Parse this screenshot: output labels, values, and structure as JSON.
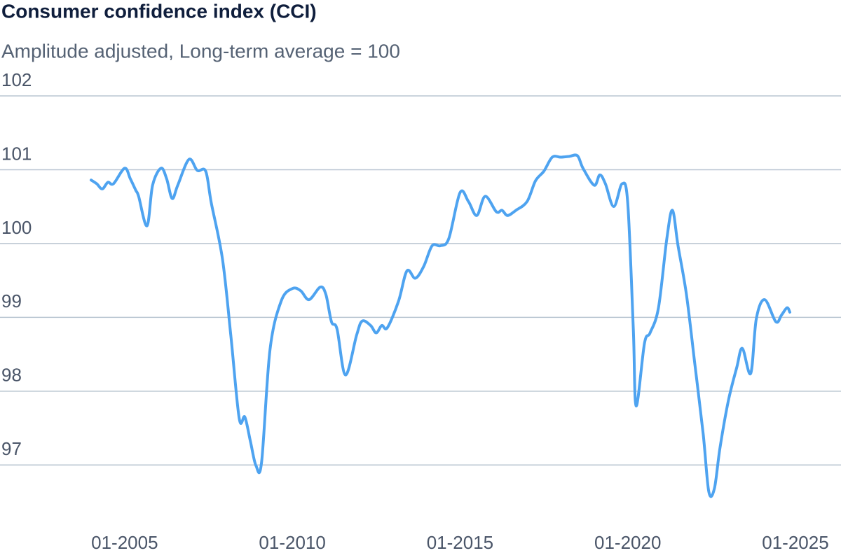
{
  "chart_data": {
    "type": "line",
    "title": "Consumer confidence index (CCI)",
    "subtitle": "Amplitude adjusted, Long-term average = 100",
    "x": [
      "01-2004",
      "03-2004",
      "05-2004",
      "07-2004",
      "09-2004",
      "01-2005",
      "03-2005",
      "05-2005",
      "06-2005",
      "09-2005",
      "11-2005",
      "02-2006",
      "04-2006",
      "06-2006",
      "08-2006",
      "12-2006",
      "03-2007",
      "06-2007",
      "08-2007",
      "12-2007",
      "03-2008",
      "06-2008",
      "08-2008",
      "10-2008",
      "12-2008",
      "02-2009",
      "05-2009",
      "09-2009",
      "01-2010",
      "04-2010",
      "07-2010",
      "11-2010",
      "01-2011",
      "03-2011",
      "05-2011",
      "08-2011",
      "12-2011",
      "02-2012",
      "05-2012",
      "07-2012",
      "09-2012",
      "11-2012",
      "03-2013",
      "06-2013",
      "09-2013",
      "12-2013",
      "03-2014",
      "06-2014",
      "09-2014",
      "01-2015",
      "04-2015",
      "07-2015",
      "10-2015",
      "02-2016",
      "04-2016",
      "06-2016",
      "09-2016",
      "01-2017",
      "04-2017",
      "07-2017",
      "10-2017",
      "01-2018",
      "04-2018",
      "07-2018",
      "09-2018",
      "01-2019",
      "03-2019",
      "05-2019",
      "08-2019",
      "11-2019",
      "01-2020",
      "03-2020",
      "04-2020",
      "07-2020",
      "09-2020",
      "12-2020",
      "03-2021",
      "05-2021",
      "07-2021",
      "10-2021",
      "01-2022",
      "04-2022",
      "06-2022",
      "08-2022",
      "10-2022",
      "01-2023",
      "04-2023",
      "06-2023",
      "09-2023",
      "11-2023",
      "02-2024",
      "06-2024",
      "08-2024",
      "10-2024",
      "11-2024"
    ],
    "series": [
      {
        "name": "CCI",
        "color": "#4ea3f0",
        "values": [
          100.86,
          100.81,
          100.74,
          100.83,
          100.81,
          101.02,
          100.88,
          100.72,
          100.64,
          100.24,
          100.79,
          101.02,
          100.88,
          100.61,
          100.79,
          101.14,
          100.99,
          100.98,
          100.55,
          99.79,
          98.75,
          97.63,
          97.65,
          97.32,
          96.99,
          97.04,
          98.56,
          99.22,
          99.39,
          99.36,
          99.24,
          99.41,
          99.31,
          98.94,
          98.84,
          98.22,
          98.76,
          98.95,
          98.89,
          98.79,
          98.89,
          98.86,
          99.22,
          99.63,
          99.53,
          99.69,
          99.97,
          99.97,
          100.07,
          100.69,
          100.57,
          100.38,
          100.64,
          100.43,
          100.45,
          100.38,
          100.45,
          100.57,
          100.85,
          100.98,
          101.17,
          101.17,
          101.18,
          101.19,
          101.02,
          100.79,
          100.93,
          100.81,
          100.5,
          100.81,
          100.55,
          98.84,
          97.8,
          98.65,
          98.79,
          99.13,
          100.07,
          100.45,
          99.97,
          99.31,
          98.37,
          97.42,
          96.64,
          96.68,
          97.23,
          97.87,
          98.32,
          98.58,
          98.24,
          98.98,
          99.24,
          98.94,
          99.03,
          99.13,
          99.07
        ]
      }
    ],
    "xlim": [
      "01-2004",
      "11-2024"
    ],
    "xticks": [
      "01-2005",
      "01-2010",
      "01-2015",
      "01-2020",
      "01-2025"
    ],
    "ylim": [
      96.5,
      102
    ],
    "yticks": [
      97,
      98,
      99,
      100,
      101,
      102
    ],
    "grid": true
  }
}
